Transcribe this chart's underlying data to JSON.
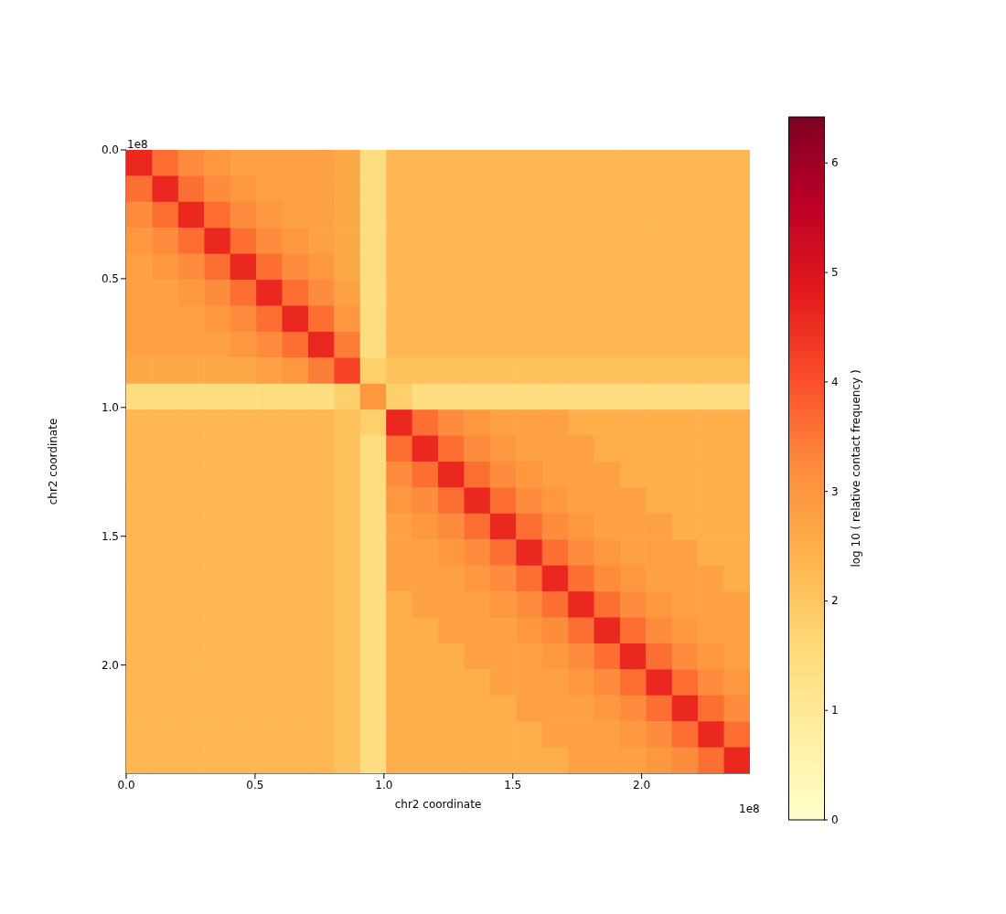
{
  "chart_data": {
    "type": "heatmap",
    "xlabel": "chr2 coordinate",
    "ylabel": "chr2 coordinate",
    "clabel": "log 10 ( relative contact frequency )",
    "annotations": [
      "1e8",
      "1e8"
    ],
    "xlim": [
      0,
      2.42
    ],
    "ylim": [
      2.42,
      0
    ],
    "xticks": [
      {
        "value": 0,
        "label": "0.0"
      },
      0.5,
      {
        "value": 1,
        "label": "1.0"
      },
      1.5,
      {
        "value": 2,
        "label": "2.0"
      }
    ],
    "yticks": [
      {
        "value": 0,
        "label": "0.0"
      },
      0.5,
      {
        "value": 1,
        "label": "1.0"
      },
      1.5,
      {
        "value": 2,
        "label": "2.0"
      }
    ],
    "clim": [
      0,
      6.42
    ],
    "cticks": [
      0,
      1,
      2,
      3,
      4,
      5,
      6
    ],
    "cells": [
      [
        4.6,
        3.6,
        3.2,
        3.0,
        2.8,
        2.8,
        2.8,
        2.8,
        2.6,
        1.4,
        2.3,
        2.3,
        2.3,
        2.3,
        2.3,
        2.3,
        2.3,
        2.3,
        2.3,
        2.3,
        2.3,
        2.3,
        2.3,
        2.3
      ],
      [
        3.6,
        4.6,
        3.6,
        3.2,
        3.0,
        2.8,
        2.8,
        2.8,
        2.6,
        1.4,
        2.3,
        2.3,
        2.3,
        2.3,
        2.3,
        2.3,
        2.3,
        2.3,
        2.3,
        2.3,
        2.3,
        2.3,
        2.3,
        2.3
      ],
      [
        3.2,
        3.6,
        4.6,
        3.6,
        3.2,
        3.0,
        2.8,
        2.8,
        2.6,
        1.4,
        2.3,
        2.3,
        2.3,
        2.3,
        2.3,
        2.3,
        2.3,
        2.3,
        2.3,
        2.3,
        2.3,
        2.3,
        2.3,
        2.3
      ],
      [
        3.0,
        3.2,
        3.6,
        4.6,
        3.6,
        3.2,
        3.0,
        2.8,
        2.6,
        1.4,
        2.3,
        2.3,
        2.3,
        2.3,
        2.3,
        2.3,
        2.3,
        2.3,
        2.3,
        2.3,
        2.3,
        2.3,
        2.3,
        2.3
      ],
      [
        2.8,
        3.0,
        3.2,
        3.6,
        4.6,
        3.6,
        3.2,
        3.0,
        2.6,
        1.4,
        2.3,
        2.3,
        2.3,
        2.3,
        2.3,
        2.3,
        2.3,
        2.3,
        2.3,
        2.3,
        2.3,
        2.3,
        2.3,
        2.3
      ],
      [
        2.8,
        2.8,
        3.0,
        3.2,
        3.6,
        4.6,
        3.6,
        3.2,
        2.8,
        1.4,
        2.3,
        2.3,
        2.3,
        2.3,
        2.3,
        2.3,
        2.3,
        2.3,
        2.3,
        2.3,
        2.3,
        2.3,
        2.3,
        2.3
      ],
      [
        2.8,
        2.8,
        2.8,
        3.0,
        3.2,
        3.6,
        4.6,
        3.6,
        3.0,
        1.4,
        2.3,
        2.3,
        2.3,
        2.3,
        2.3,
        2.3,
        2.3,
        2.3,
        2.3,
        2.3,
        2.3,
        2.3,
        2.3,
        2.3
      ],
      [
        2.8,
        2.8,
        2.8,
        2.8,
        3.0,
        3.2,
        3.6,
        4.6,
        3.4,
        1.4,
        2.3,
        2.3,
        2.3,
        2.3,
        2.3,
        2.3,
        2.3,
        2.3,
        2.3,
        2.3,
        2.3,
        2.3,
        2.3,
        2.3
      ],
      [
        2.6,
        2.6,
        2.6,
        2.6,
        2.6,
        2.8,
        3.0,
        3.4,
        4.2,
        1.8,
        2.1,
        2.1,
        2.1,
        2.1,
        2.1,
        2.1,
        2.1,
        2.1,
        2.1,
        2.1,
        2.1,
        2.1,
        2.1,
        2.1
      ],
      [
        1.4,
        1.4,
        1.4,
        1.4,
        1.4,
        1.4,
        1.4,
        1.4,
        1.8,
        3.0,
        1.8,
        1.4,
        1.4,
        1.4,
        1.4,
        1.4,
        1.4,
        1.4,
        1.4,
        1.4,
        1.4,
        1.4,
        1.4,
        1.4
      ],
      [
        2.3,
        2.3,
        2.3,
        2.3,
        2.3,
        2.3,
        2.3,
        2.3,
        2.1,
        1.8,
        4.6,
        3.6,
        3.2,
        3.0,
        2.8,
        2.8,
        2.8,
        2.5,
        2.5,
        2.5,
        2.5,
        2.5,
        2.5,
        2.5
      ],
      [
        2.3,
        2.3,
        2.3,
        2.3,
        2.3,
        2.3,
        2.3,
        2.3,
        2.1,
        1.4,
        3.6,
        4.6,
        3.6,
        3.2,
        3.0,
        2.8,
        2.8,
        2.8,
        2.5,
        2.5,
        2.5,
        2.5,
        2.5,
        2.5
      ],
      [
        2.3,
        2.3,
        2.3,
        2.3,
        2.3,
        2.3,
        2.3,
        2.3,
        2.1,
        1.4,
        3.2,
        3.6,
        4.6,
        3.6,
        3.2,
        3.0,
        2.8,
        2.8,
        2.8,
        2.5,
        2.5,
        2.5,
        2.5,
        2.5
      ],
      [
        2.3,
        2.3,
        2.3,
        2.3,
        2.3,
        2.3,
        2.3,
        2.3,
        2.1,
        1.4,
        3.0,
        3.2,
        3.6,
        4.6,
        3.6,
        3.2,
        3.0,
        2.8,
        2.8,
        2.8,
        2.5,
        2.5,
        2.5,
        2.5
      ],
      [
        2.3,
        2.3,
        2.3,
        2.3,
        2.3,
        2.3,
        2.3,
        2.3,
        2.1,
        1.4,
        2.8,
        3.0,
        3.2,
        3.6,
        4.6,
        3.6,
        3.2,
        3.0,
        2.8,
        2.8,
        2.8,
        2.5,
        2.5,
        2.5
      ],
      [
        2.3,
        2.3,
        2.3,
        2.3,
        2.3,
        2.3,
        2.3,
        2.3,
        2.1,
        1.4,
        2.8,
        2.8,
        3.0,
        3.2,
        3.6,
        4.6,
        3.6,
        3.2,
        3.0,
        2.8,
        2.8,
        2.8,
        2.5,
        2.5
      ],
      [
        2.3,
        2.3,
        2.3,
        2.3,
        2.3,
        2.3,
        2.3,
        2.3,
        2.1,
        1.4,
        2.8,
        2.8,
        2.8,
        3.0,
        3.2,
        3.6,
        4.6,
        3.6,
        3.2,
        3.0,
        2.8,
        2.8,
        2.8,
        2.5
      ],
      [
        2.3,
        2.3,
        2.3,
        2.3,
        2.3,
        2.3,
        2.3,
        2.3,
        2.1,
        1.4,
        2.5,
        2.8,
        2.8,
        2.8,
        3.0,
        3.2,
        3.6,
        4.6,
        3.6,
        3.2,
        3.0,
        2.8,
        2.8,
        2.8
      ],
      [
        2.3,
        2.3,
        2.3,
        2.3,
        2.3,
        2.3,
        2.3,
        2.3,
        2.1,
        1.4,
        2.5,
        2.5,
        2.8,
        2.8,
        2.8,
        3.0,
        3.2,
        3.6,
        4.6,
        3.6,
        3.2,
        3.0,
        2.8,
        2.8
      ],
      [
        2.3,
        2.3,
        2.3,
        2.3,
        2.3,
        2.3,
        2.3,
        2.3,
        2.1,
        1.4,
        2.5,
        2.5,
        2.5,
        2.8,
        2.8,
        2.8,
        3.0,
        3.2,
        3.6,
        4.6,
        3.6,
        3.2,
        3.0,
        2.8
      ],
      [
        2.3,
        2.3,
        2.3,
        2.3,
        2.3,
        2.3,
        2.3,
        2.3,
        2.1,
        1.4,
        2.5,
        2.5,
        2.5,
        2.5,
        2.8,
        2.8,
        2.8,
        3.0,
        3.2,
        3.6,
        4.6,
        3.6,
        3.2,
        3.0
      ],
      [
        2.3,
        2.3,
        2.3,
        2.3,
        2.3,
        2.3,
        2.3,
        2.3,
        2.1,
        1.4,
        2.5,
        2.5,
        2.5,
        2.5,
        2.5,
        2.8,
        2.8,
        2.8,
        3.0,
        3.2,
        3.6,
        4.6,
        3.6,
        3.2
      ],
      [
        2.3,
        2.3,
        2.3,
        2.3,
        2.3,
        2.3,
        2.3,
        2.3,
        2.1,
        1.4,
        2.5,
        2.5,
        2.5,
        2.5,
        2.5,
        2.5,
        2.8,
        2.8,
        2.8,
        3.0,
        3.2,
        3.6,
        4.6,
        3.6
      ],
      [
        2.3,
        2.3,
        2.3,
        2.3,
        2.3,
        2.3,
        2.3,
        2.3,
        2.1,
        1.4,
        2.5,
        2.5,
        2.5,
        2.5,
        2.5,
        2.5,
        2.5,
        2.8,
        2.8,
        2.8,
        3.0,
        3.2,
        3.6,
        4.6
      ]
    ]
  }
}
